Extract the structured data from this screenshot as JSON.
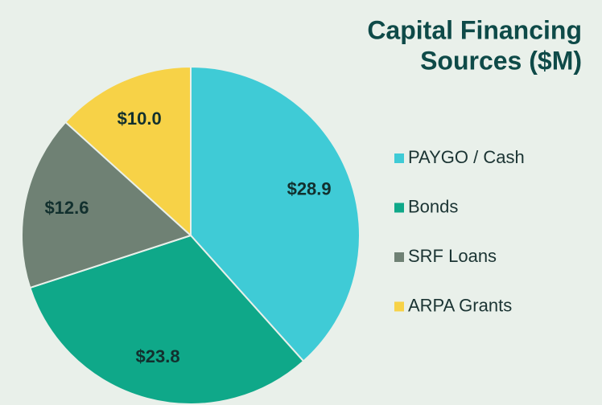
{
  "chart_data": {
    "type": "pie",
    "title": [
      "Capital Financing",
      "Sources ($M)"
    ],
    "categories": [
      "PAYGO / Cash",
      "Bonds",
      "SRF Loans",
      "ARPA Grants"
    ],
    "values": [
      28.9,
      23.8,
      12.6,
      10.0
    ],
    "value_labels": [
      "$28.9",
      "$23.8",
      "$12.6",
      "$10.0"
    ],
    "colors": [
      "#3fcbd6",
      "#0fa889",
      "#6f8174",
      "#f7d247"
    ],
    "legend": "right"
  }
}
